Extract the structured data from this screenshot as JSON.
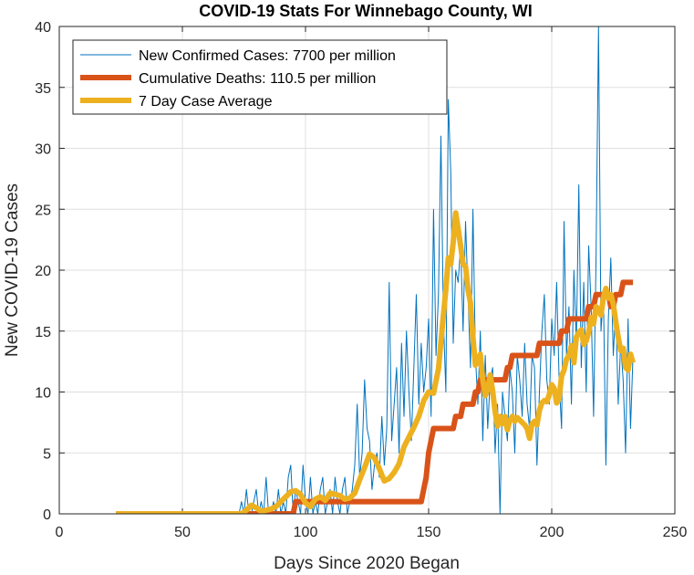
{
  "chart_data": {
    "type": "line",
    "title": "COVID-19 Stats For Winnebago County, WI",
    "xlabel": "Days Since 2020 Began",
    "ylabel": "New COVID-19 Cases",
    "xlim": [
      0,
      250
    ],
    "ylim": [
      0,
      40
    ],
    "xticks": [
      "0",
      "50",
      "100",
      "150",
      "200",
      "250"
    ],
    "yticks": [
      "0",
      "5",
      "10",
      "15",
      "20",
      "25",
      "30",
      "35",
      "40"
    ],
    "xtick_values": [
      0,
      50,
      100,
      150,
      200,
      250
    ],
    "ytick_values": [
      0,
      5,
      10,
      15,
      20,
      25,
      30,
      35,
      40
    ],
    "grid": true,
    "legend_position": "top-left",
    "series": [
      {
        "name": "New Confirmed Cases: 7700 per million",
        "color": "#0072BD",
        "x": [
          23,
          70,
          73,
          74,
          75,
          76,
          77,
          78,
          79,
          80,
          81,
          82,
          83,
          84,
          85,
          86,
          87,
          88,
          89,
          90,
          91,
          92,
          93,
          94,
          95,
          96,
          97,
          98,
          99,
          100,
          101,
          102,
          103,
          104,
          105,
          106,
          107,
          108,
          109,
          110,
          111,
          112,
          113,
          114,
          115,
          116,
          117,
          118,
          119,
          120,
          121,
          122,
          123,
          124,
          125,
          126,
          127,
          128,
          129,
          130,
          131,
          132,
          133,
          134,
          135,
          136,
          137,
          138,
          139,
          140,
          141,
          142,
          143,
          144,
          145,
          146,
          147,
          148,
          149,
          150,
          151,
          152,
          153,
          154,
          155,
          156,
          157,
          158,
          159,
          160,
          161,
          162,
          163,
          164,
          165,
          166,
          167,
          168,
          169,
          170,
          171,
          172,
          173,
          174,
          175,
          176,
          177,
          178,
          179,
          180,
          181,
          182,
          183,
          184,
          185,
          186,
          187,
          188,
          189,
          190,
          191,
          192,
          193,
          194,
          195,
          196,
          197,
          198,
          199,
          200,
          201,
          202,
          203,
          204,
          205,
          206,
          207,
          208,
          209,
          210,
          211,
          212,
          213,
          214,
          215,
          216,
          217,
          218,
          219,
          220,
          221,
          222,
          223,
          224,
          225,
          226,
          227,
          228,
          229,
          230,
          231,
          232,
          233
        ],
        "y": [
          0,
          0,
          0,
          1,
          0,
          2,
          0,
          0,
          1,
          2,
          0,
          1,
          0,
          3,
          0,
          0,
          1,
          0,
          2,
          0,
          1,
          0,
          3,
          4,
          0,
          2,
          1,
          0,
          4,
          1,
          0,
          3,
          0,
          1,
          0,
          2,
          3,
          0,
          1,
          2,
          0,
          3,
          1,
          0,
          2,
          3,
          0,
          1,
          2,
          4,
          9,
          3,
          5,
          11,
          7,
          6,
          2,
          4,
          5,
          3,
          8,
          4,
          7,
          19,
          6,
          9,
          12,
          5,
          14,
          8,
          15,
          10,
          6,
          12,
          18,
          9,
          14,
          10,
          12,
          16,
          8,
          25,
          13,
          18,
          31,
          16,
          10,
          34,
          28,
          14,
          20,
          19,
          22,
          15,
          24,
          18,
          12,
          25,
          13,
          9,
          15,
          6,
          13,
          7,
          11,
          12,
          5,
          9,
          0,
          10,
          8,
          6,
          12,
          10,
          5,
          13,
          11,
          8,
          14,
          9,
          7,
          13,
          12,
          4,
          10,
          15,
          18,
          11,
          9,
          16,
          13,
          19,
          11,
          7,
          24,
          13,
          17,
          9,
          20,
          14,
          27,
          12,
          19,
          10,
          22,
          17,
          8,
          21,
          40,
          15,
          18,
          4,
          16,
          21,
          13,
          17,
          9,
          14,
          11,
          5,
          16,
          7,
          13
        ],
        "width": 1
      },
      {
        "name": "Cumulative Deaths: 110.5 per million",
        "color": "#D95319",
        "x": [
          23,
          95,
          96,
          97,
          98,
          99,
          100,
          101,
          102,
          103,
          104,
          105,
          106,
          107,
          108,
          109,
          110,
          111,
          112,
          113,
          114,
          115,
          116,
          117,
          118,
          119,
          120,
          121,
          122,
          123,
          124,
          125,
          126,
          127,
          128,
          129,
          130,
          131,
          132,
          133,
          134,
          135,
          136,
          137,
          138,
          139,
          140,
          141,
          142,
          143,
          144,
          145,
          146,
          147,
          148,
          149,
          150,
          151,
          152,
          153,
          154,
          155,
          156,
          157,
          158,
          159,
          160,
          161,
          162,
          163,
          164,
          165,
          166,
          167,
          168,
          169,
          170,
          171,
          172,
          173,
          174,
          175,
          176,
          177,
          178,
          179,
          180,
          181,
          182,
          183,
          184,
          185,
          186,
          187,
          188,
          189,
          190,
          191,
          192,
          193,
          194,
          195,
          196,
          197,
          198,
          199,
          200,
          201,
          202,
          203,
          204,
          205,
          206,
          207,
          208,
          209,
          210,
          211,
          212,
          213,
          214,
          215,
          216,
          217,
          218,
          219,
          220,
          221,
          222,
          223,
          224,
          225,
          226,
          227,
          228,
          229,
          230,
          231,
          232,
          233
        ],
        "y": [
          0,
          0,
          1,
          1,
          1,
          1,
          1,
          1,
          1,
          1,
          1,
          1,
          1,
          1,
          1,
          1,
          1,
          1,
          1,
          1,
          1,
          1,
          1,
          1,
          1,
          1,
          1,
          1,
          1,
          1,
          1,
          1,
          1,
          1,
          1,
          1,
          1,
          1,
          1,
          1,
          1,
          1,
          1,
          1,
          1,
          1,
          1,
          1,
          1,
          1,
          1,
          1,
          1,
          1,
          2,
          3,
          5,
          6,
          7,
          7,
          7,
          7,
          7,
          7,
          7,
          7,
          7,
          8,
          8,
          8,
          9,
          9,
          9,
          9,
          9,
          10,
          10,
          11,
          11,
          11,
          11,
          11,
          11,
          11,
          11,
          11,
          11,
          11,
          12,
          12,
          13,
          13,
          13,
          13,
          13,
          13,
          13,
          13,
          13,
          13,
          13,
          14,
          14,
          14,
          14,
          14,
          14,
          14,
          14,
          14,
          15,
          15,
          15,
          16,
          16,
          16,
          16,
          16,
          16,
          16,
          16,
          17,
          17,
          17,
          18,
          18,
          18,
          18,
          18,
          18,
          17,
          17,
          18,
          18,
          18,
          19,
          19,
          19,
          19,
          19
        ],
        "width": 6
      },
      {
        "name": "7 Day Case Average",
        "color": "#EDB120",
        "x": [
          23,
          74,
          76,
          78,
          80,
          82,
          84,
          86,
          88,
          90,
          92,
          94,
          96,
          98,
          100,
          102,
          104,
          106,
          108,
          110,
          112,
          114,
          116,
          118,
          120,
          122,
          124,
          126,
          128,
          130,
          132,
          134,
          136,
          138,
          140,
          142,
          144,
          146,
          148,
          150,
          152,
          154,
          156,
          157,
          158,
          159,
          160,
          161,
          162,
          163,
          164,
          165,
          166,
          167,
          168,
          169,
          170,
          171,
          172,
          173,
          174,
          175,
          176,
          177,
          178,
          179,
          180,
          181,
          182,
          183,
          184,
          185,
          186,
          187,
          188,
          189,
          190,
          191,
          192,
          193,
          194,
          195,
          196,
          197,
          198,
          199,
          200,
          201,
          202,
          203,
          204,
          205,
          206,
          207,
          208,
          209,
          210,
          211,
          212,
          213,
          214,
          215,
          216,
          217,
          218,
          219,
          220,
          221,
          222,
          223,
          224,
          225,
          226,
          227,
          228,
          229,
          230,
          231,
          232,
          233
        ],
        "y": [
          0,
          0,
          0.3,
          0.7,
          0.5,
          0.2,
          0.3,
          0.4,
          0.6,
          1.0,
          1.4,
          1.8,
          1.9,
          1.6,
          0.9,
          0.6,
          1.2,
          1.4,
          1.1,
          1.7,
          1.6,
          1.5,
          1.2,
          1.3,
          1.7,
          2.8,
          3.8,
          4.9,
          4.6,
          3.7,
          2.7,
          2.9,
          3.4,
          4.1,
          5.5,
          6.3,
          7.1,
          8.0,
          9.3,
          10.0,
          9.9,
          11.9,
          16.3,
          18.4,
          21.0,
          20.5,
          22.3,
          24.7,
          23.4,
          22.0,
          20.5,
          20.3,
          18.4,
          17.3,
          14.5,
          12.2,
          12.5,
          13.1,
          11.0,
          9.7,
          10.2,
          11.4,
          10.1,
          8.4,
          7.2,
          8.0,
          7.4,
          8.0,
          6.9,
          7.7,
          8.0,
          7.6,
          7.9,
          7.7,
          7.5,
          7.3,
          7.0,
          6.2,
          7.4,
          7.6,
          7.3,
          8.5,
          9.1,
          9.3,
          9.2,
          9.8,
          10.6,
          10.3,
          9.1,
          9.5,
          11.3,
          11.8,
          12.7,
          13.0,
          13.8,
          12.4,
          14.5,
          14.9,
          15.1,
          13.9,
          14.2,
          14.9,
          16.1,
          15.6,
          17.0,
          16.8,
          16.3,
          17.8,
          18.5,
          17.7,
          18.0,
          17.2,
          15.8,
          14.5,
          13.4,
          13.6,
          12.0,
          11.8,
          13.1,
          12.4
        ],
        "width": 6
      }
    ]
  }
}
